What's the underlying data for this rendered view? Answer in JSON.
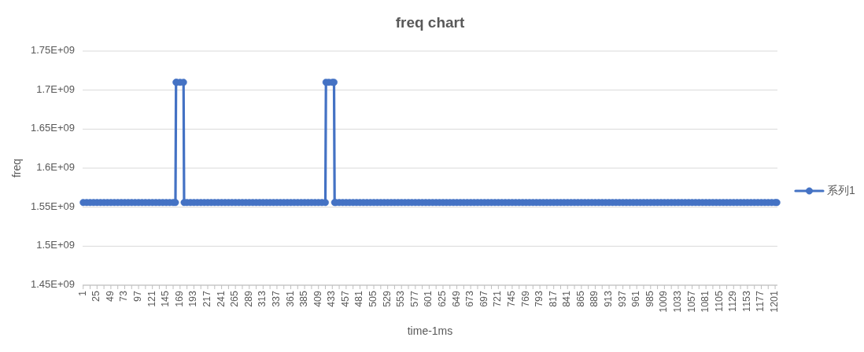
{
  "chart_data": {
    "type": "line",
    "title": "freq chart",
    "xlabel": "time-1ms",
    "ylabel": "freq",
    "xlim": [
      0,
      1205
    ],
    "ylim": [
      1450000000,
      1750000000
    ],
    "yticks": [
      {
        "value": 1450000000,
        "label": "1.45E+09"
      },
      {
        "value": 1500000000,
        "label": "1.5E+09"
      },
      {
        "value": 1550000000,
        "label": "1.55E+09"
      },
      {
        "value": 1600000000,
        "label": "1.6E+09"
      },
      {
        "value": 1650000000,
        "label": "1.65E+09"
      },
      {
        "value": 1700000000,
        "label": "1.7E+09"
      },
      {
        "value": 1750000000,
        "label": "1.75E+09"
      }
    ],
    "xticks": [
      1,
      {
        "value": 13,
        "label": null
      },
      25,
      {
        "value": 37,
        "label": null
      },
      49,
      {
        "value": 61,
        "label": null
      },
      73,
      {
        "value": 85,
        "label": null
      },
      97,
      {
        "value": 109,
        "label": null
      },
      121,
      {
        "value": 133,
        "label": null
      },
      145,
      {
        "value": 157,
        "label": null
      },
      169,
      {
        "value": 181,
        "label": null
      },
      193,
      {
        "value": 205,
        "label": null
      },
      217,
      {
        "value": 229,
        "label": null
      },
      241,
      {
        "value": 253,
        "label": null
      },
      265,
      {
        "value": 277,
        "label": null
      },
      289,
      {
        "value": 301,
        "label": null
      },
      313,
      {
        "value": 325,
        "label": null
      },
      337,
      {
        "value": 349,
        "label": null
      },
      361,
      {
        "value": 373,
        "label": null
      },
      385,
      {
        "value": 397,
        "label": null
      },
      409,
      {
        "value": 421,
        "label": null
      },
      433,
      {
        "value": 445,
        "label": null
      },
      457,
      {
        "value": 469,
        "label": null
      },
      481,
      {
        "value": 493,
        "label": null
      },
      505,
      {
        "value": 517,
        "label": null
      },
      529,
      {
        "value": 541,
        "label": null
      },
      553,
      {
        "value": 565,
        "label": null
      },
      577,
      {
        "value": 589,
        "label": null
      },
      601,
      {
        "value": 613,
        "label": null
      },
      625,
      {
        "value": 637,
        "label": null
      },
      649,
      {
        "value": 661,
        "label": null
      },
      673,
      {
        "value": 685,
        "label": null
      },
      697,
      {
        "value": 709,
        "label": null
      },
      721,
      {
        "value": 733,
        "label": null
      },
      745,
      {
        "value": 757,
        "label": null
      },
      769,
      {
        "value": 781,
        "label": null
      },
      793,
      {
        "value": 805,
        "label": null
      },
      817,
      {
        "value": 829,
        "label": null
      },
      841,
      {
        "value": 853,
        "label": null
      },
      865,
      {
        "value": 877,
        "label": null
      },
      889,
      {
        "value": 901,
        "label": null
      },
      913,
      {
        "value": 925,
        "label": null
      },
      937,
      {
        "value": 949,
        "label": null
      },
      961,
      {
        "value": 973,
        "label": null
      },
      985,
      {
        "value": 997,
        "label": null
      },
      1009,
      {
        "value": 1021,
        "label": null
      },
      1033,
      {
        "value": 1045,
        "label": null
      },
      1057,
      {
        "value": 1069,
        "label": null
      },
      1081,
      {
        "value": 1093,
        "label": null
      },
      1105,
      {
        "value": 1117,
        "label": null
      },
      1129,
      {
        "value": 1141,
        "label": null
      },
      1153,
      {
        "value": 1165,
        "label": null
      },
      1177,
      {
        "value": 1189,
        "label": null
      },
      1201
    ],
    "grid": "y",
    "legend": "right",
    "marker": "circle",
    "x": [
      1,
      7,
      13,
      19,
      25,
      31,
      37,
      43,
      49,
      55,
      61,
      67,
      73,
      79,
      85,
      91,
      97,
      103,
      109,
      115,
      121,
      127,
      133,
      139,
      145,
      151,
      157,
      161,
      162,
      163,
      169,
      175,
      176,
      181,
      187,
      193,
      199,
      205,
      211,
      217,
      223,
      229,
      235,
      241,
      247,
      253,
      259,
      265,
      271,
      277,
      283,
      289,
      295,
      301,
      307,
      313,
      319,
      325,
      331,
      337,
      343,
      349,
      355,
      361,
      367,
      373,
      379,
      385,
      391,
      397,
      403,
      409,
      415,
      421,
      422,
      427,
      433,
      436,
      437,
      439,
      445,
      451,
      457,
      463,
      469,
      475,
      481,
      487,
      493,
      499,
      505,
      511,
      517,
      523,
      529,
      535,
      541,
      547,
      553,
      559,
      565,
      571,
      577,
      583,
      589,
      595,
      601,
      607,
      613,
      619,
      625,
      631,
      637,
      643,
      649,
      655,
      661,
      667,
      673,
      679,
      685,
      691,
      697,
      703,
      709,
      715,
      721,
      727,
      733,
      739,
      745,
      751,
      757,
      763,
      769,
      775,
      781,
      787,
      793,
      799,
      805,
      811,
      817,
      823,
      829,
      835,
      841,
      847,
      853,
      859,
      865,
      871,
      877,
      883,
      889,
      895,
      901,
      907,
      913,
      919,
      925,
      931,
      937,
      943,
      949,
      955,
      961,
      967,
      973,
      979,
      985,
      991,
      997,
      1003,
      1009,
      1015,
      1021,
      1027,
      1033,
      1039,
      1045,
      1051,
      1057,
      1063,
      1069,
      1075,
      1081,
      1087,
      1093,
      1099,
      1105,
      1111,
      1117,
      1123,
      1129,
      1135,
      1141,
      1147,
      1153,
      1159,
      1165,
      1171,
      1177,
      1183,
      1189,
      1195,
      1201,
      1204
    ],
    "series": [
      {
        "name": "系列1",
        "color": "#4472c4",
        "values": [
          1556000000,
          1556000000,
          1556000000,
          1556000000,
          1556000000,
          1556000000,
          1556000000,
          1556000000,
          1556000000,
          1556000000,
          1556000000,
          1556000000,
          1556000000,
          1556000000,
          1556000000,
          1556000000,
          1556000000,
          1556000000,
          1556000000,
          1556000000,
          1556000000,
          1556000000,
          1556000000,
          1556000000,
          1556000000,
          1556000000,
          1556000000,
          1556000000,
          1710000000,
          1710000000,
          1710000000,
          1710000000,
          1556000000,
          1556000000,
          1556000000,
          1556000000,
          1556000000,
          1556000000,
          1556000000,
          1556000000,
          1556000000,
          1556000000,
          1556000000,
          1556000000,
          1556000000,
          1556000000,
          1556000000,
          1556000000,
          1556000000,
          1556000000,
          1556000000,
          1556000000,
          1556000000,
          1556000000,
          1556000000,
          1556000000,
          1556000000,
          1556000000,
          1556000000,
          1556000000,
          1556000000,
          1556000000,
          1556000000,
          1556000000,
          1556000000,
          1556000000,
          1556000000,
          1556000000,
          1556000000,
          1556000000,
          1556000000,
          1556000000,
          1556000000,
          1556000000,
          1710000000,
          1710000000,
          1710000000,
          1710000000,
          1556000000,
          1556000000,
          1556000000,
          1556000000,
          1556000000,
          1556000000,
          1556000000,
          1556000000,
          1556000000,
          1556000000,
          1556000000,
          1556000000,
          1556000000,
          1556000000,
          1556000000,
          1556000000,
          1556000000,
          1556000000,
          1556000000,
          1556000000,
          1556000000,
          1556000000,
          1556000000,
          1556000000,
          1556000000,
          1556000000,
          1556000000,
          1556000000,
          1556000000,
          1556000000,
          1556000000,
          1556000000,
          1556000000,
          1556000000,
          1556000000,
          1556000000,
          1556000000,
          1556000000,
          1556000000,
          1556000000,
          1556000000,
          1556000000,
          1556000000,
          1556000000,
          1556000000,
          1556000000,
          1556000000,
          1556000000,
          1556000000,
          1556000000,
          1556000000,
          1556000000,
          1556000000,
          1556000000,
          1556000000,
          1556000000,
          1556000000,
          1556000000,
          1556000000,
          1556000000,
          1556000000,
          1556000000,
          1556000000,
          1556000000,
          1556000000,
          1556000000,
          1556000000,
          1556000000,
          1556000000,
          1556000000,
          1556000000,
          1556000000,
          1556000000,
          1556000000,
          1556000000,
          1556000000,
          1556000000,
          1556000000,
          1556000000,
          1556000000,
          1556000000,
          1556000000,
          1556000000,
          1556000000,
          1556000000,
          1556000000,
          1556000000,
          1556000000,
          1556000000,
          1556000000,
          1556000000,
          1556000000,
          1556000000,
          1556000000,
          1556000000,
          1556000000,
          1556000000,
          1556000000,
          1556000000,
          1556000000,
          1556000000,
          1556000000,
          1556000000,
          1556000000,
          1556000000,
          1556000000,
          1556000000,
          1556000000,
          1556000000,
          1556000000,
          1556000000,
          1556000000,
          1556000000,
          1556000000,
          1556000000,
          1556000000,
          1556000000,
          1556000000,
          1556000000,
          1556000000,
          1556000000,
          1556000000,
          1556000000,
          1556000000,
          1556000000,
          1556000000,
          1556000000,
          1556000000,
          1556000000,
          1556000000
        ]
      }
    ]
  }
}
